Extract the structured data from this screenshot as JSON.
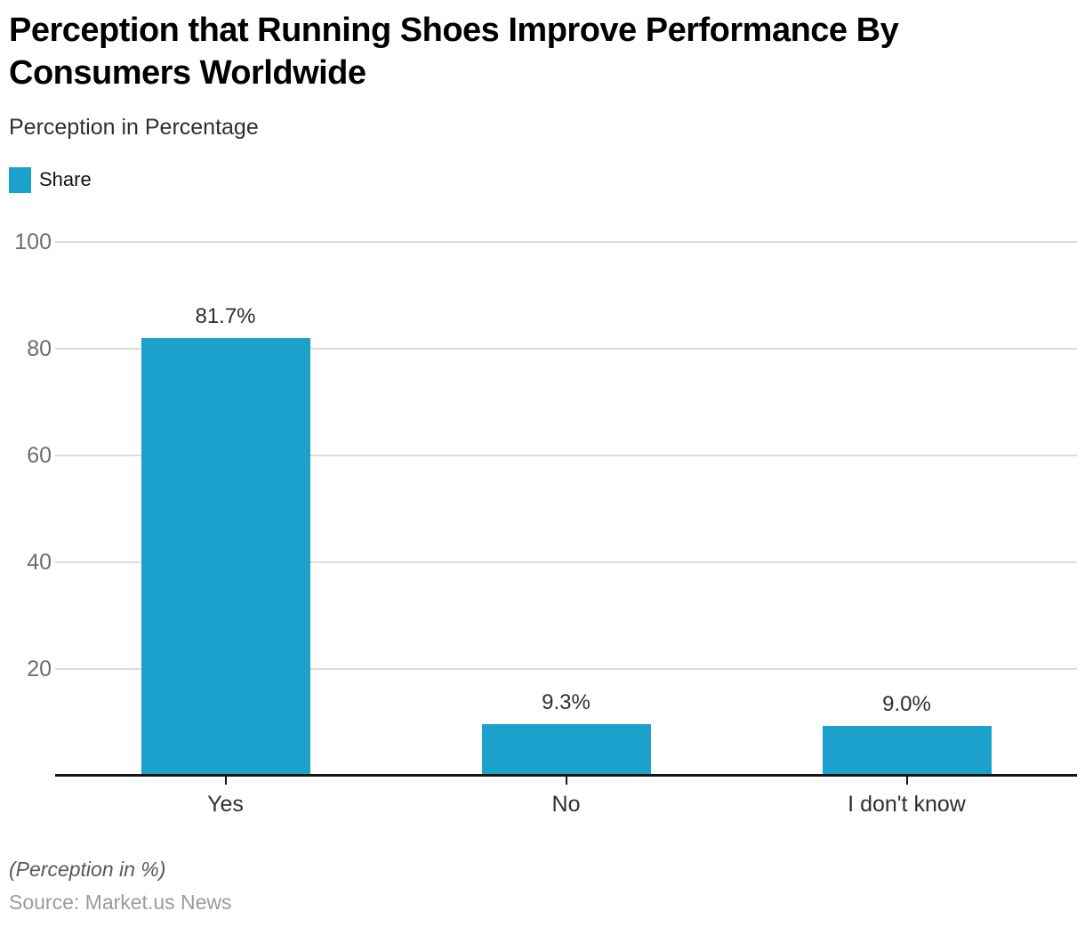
{
  "header": {
    "title": "Perception that Running Shoes Improve Performance By Consumers Worldwide",
    "title_lines": [
      "Perception that Running Shoes Improve Performance By",
      "Consumers Worldwide"
    ],
    "subtitle": "Perception in Percentage"
  },
  "legend": {
    "label": "Share",
    "swatch_color": "#1CA0CC"
  },
  "chart_data": {
    "type": "bar",
    "title": "Perception that Running Shoes Improve Performance By Consumers Worldwide",
    "subtitle": "Perception in Percentage",
    "series_name": "Share",
    "categories": [
      "Yes",
      "No",
      "I don't know"
    ],
    "values": [
      81.7,
      9.3,
      9.0
    ],
    "value_labels": [
      "81.7%",
      "9.3%",
      "9.0%"
    ],
    "xlabel": "",
    "ylabel": "",
    "ylim": [
      0,
      100
    ],
    "yticks": [
      100,
      80,
      60,
      40,
      20
    ],
    "grid": true,
    "legend_position": "top-left",
    "bar_color": "#1CA0CC",
    "gridline_color": "#dcdcdc",
    "axis_color": "#151515"
  },
  "footer": {
    "note": "(Perception in %)",
    "source": "Source: Market.us News"
  }
}
